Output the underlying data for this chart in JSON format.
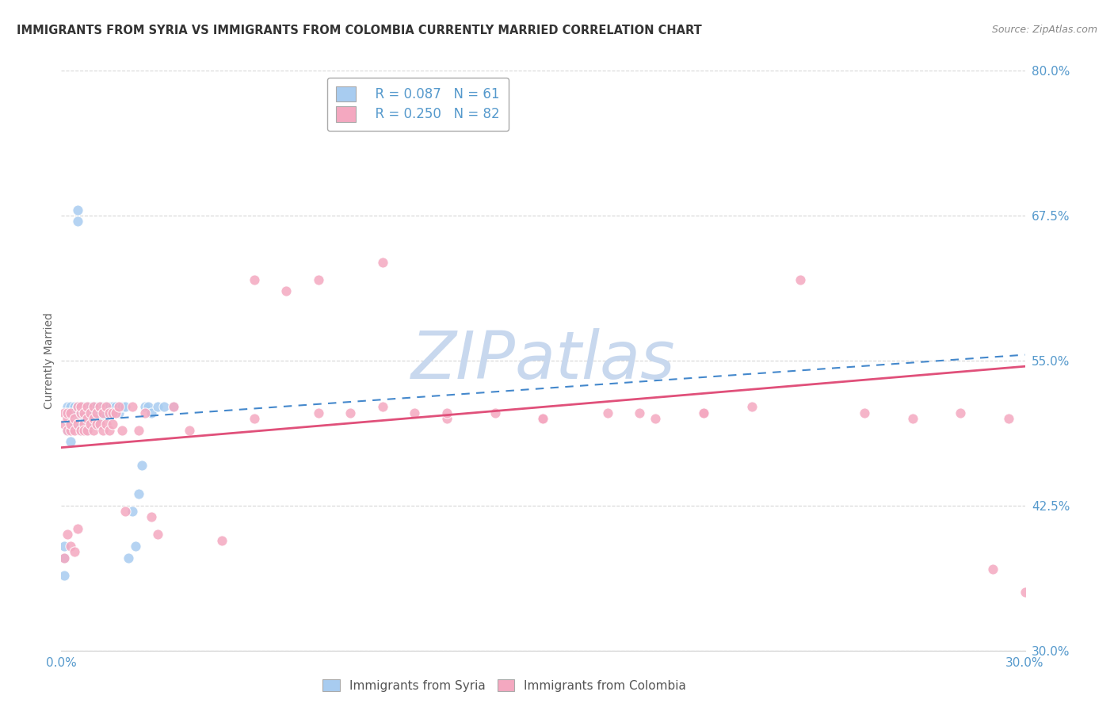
{
  "title": "IMMIGRANTS FROM SYRIA VS IMMIGRANTS FROM COLOMBIA CURRENTLY MARRIED CORRELATION CHART",
  "source": "Source: ZipAtlas.com",
  "xlabel": "",
  "ylabel": "Currently Married",
  "xlim": [
    0.0,
    0.3
  ],
  "ylim": [
    0.3,
    0.8
  ],
  "yticks": [
    0.3,
    0.425,
    0.55,
    0.675,
    0.8
  ],
  "ytick_labels": [
    "30.0%",
    "42.5%",
    "55.0%",
    "67.5%",
    "80.0%"
  ],
  "xticks": [
    0.0,
    0.05,
    0.1,
    0.15,
    0.2,
    0.25,
    0.3
  ],
  "xtick_labels": [
    "0.0%",
    "",
    "",
    "",
    "",
    "",
    "30.0%"
  ],
  "legend_syria_r": "R = 0.087",
  "legend_syria_n": "N = 61",
  "legend_colombia_r": "R = 0.250",
  "legend_colombia_n": "N = 82",
  "syria_color": "#A8CCF0",
  "colombia_color": "#F4A8C0",
  "syria_line_color": "#4488CC",
  "colombia_line_color": "#E0507A",
  "background_color": "#FFFFFF",
  "grid_color": "#CCCCCC",
  "watermark": "ZIPatlas",
  "watermark_color": "#C8D8EE",
  "title_color": "#333333",
  "tick_label_color": "#5599CC",
  "syria_x": [
    0.001,
    0.001,
    0.001,
    0.002,
    0.002,
    0.002,
    0.002,
    0.003,
    0.003,
    0.003,
    0.003,
    0.003,
    0.004,
    0.004,
    0.004,
    0.004,
    0.005,
    0.005,
    0.005,
    0.005,
    0.005,
    0.006,
    0.006,
    0.006,
    0.006,
    0.007,
    0.007,
    0.007,
    0.008,
    0.008,
    0.008,
    0.009,
    0.009,
    0.01,
    0.01,
    0.01,
    0.011,
    0.011,
    0.012,
    0.012,
    0.013,
    0.013,
    0.014,
    0.015,
    0.015,
    0.016,
    0.017,
    0.018,
    0.019,
    0.02,
    0.021,
    0.022,
    0.023,
    0.024,
    0.025,
    0.026,
    0.027,
    0.028,
    0.03,
    0.032,
    0.035
  ],
  "syria_y": [
    0.38,
    0.39,
    0.365,
    0.49,
    0.5,
    0.51,
    0.505,
    0.495,
    0.5,
    0.505,
    0.51,
    0.48,
    0.5,
    0.505,
    0.51,
    0.495,
    0.68,
    0.67,
    0.51,
    0.505,
    0.495,
    0.5,
    0.51,
    0.505,
    0.49,
    0.505,
    0.51,
    0.5,
    0.51,
    0.505,
    0.49,
    0.51,
    0.505,
    0.505,
    0.51,
    0.495,
    0.51,
    0.505,
    0.51,
    0.5,
    0.51,
    0.505,
    0.51,
    0.51,
    0.505,
    0.51,
    0.51,
    0.505,
    0.51,
    0.51,
    0.38,
    0.42,
    0.39,
    0.435,
    0.46,
    0.51,
    0.51,
    0.505,
    0.51,
    0.51,
    0.51
  ],
  "colombia_x": [
    0.001,
    0.001,
    0.001,
    0.002,
    0.002,
    0.002,
    0.002,
    0.003,
    0.003,
    0.003,
    0.003,
    0.004,
    0.004,
    0.004,
    0.005,
    0.005,
    0.005,
    0.006,
    0.006,
    0.006,
    0.007,
    0.007,
    0.007,
    0.008,
    0.008,
    0.008,
    0.009,
    0.009,
    0.01,
    0.01,
    0.01,
    0.011,
    0.011,
    0.012,
    0.012,
    0.013,
    0.013,
    0.014,
    0.014,
    0.015,
    0.015,
    0.016,
    0.016,
    0.017,
    0.018,
    0.019,
    0.02,
    0.022,
    0.024,
    0.026,
    0.028,
    0.03,
    0.035,
    0.04,
    0.05,
    0.06,
    0.07,
    0.08,
    0.09,
    0.1,
    0.11,
    0.12,
    0.135,
    0.15,
    0.17,
    0.185,
    0.2,
    0.215,
    0.23,
    0.25,
    0.265,
    0.28,
    0.295,
    0.3,
    0.06,
    0.08,
    0.1,
    0.12,
    0.15,
    0.18,
    0.2,
    0.29
  ],
  "colombia_y": [
    0.495,
    0.505,
    0.38,
    0.5,
    0.505,
    0.49,
    0.4,
    0.49,
    0.505,
    0.495,
    0.39,
    0.5,
    0.49,
    0.385,
    0.51,
    0.495,
    0.405,
    0.505,
    0.49,
    0.51,
    0.495,
    0.505,
    0.49,
    0.5,
    0.51,
    0.49,
    0.505,
    0.495,
    0.51,
    0.5,
    0.49,
    0.505,
    0.495,
    0.51,
    0.495,
    0.505,
    0.49,
    0.51,
    0.495,
    0.505,
    0.49,
    0.505,
    0.495,
    0.505,
    0.51,
    0.49,
    0.42,
    0.51,
    0.49,
    0.505,
    0.415,
    0.4,
    0.51,
    0.49,
    0.395,
    0.5,
    0.61,
    0.62,
    0.505,
    0.51,
    0.505,
    0.5,
    0.505,
    0.5,
    0.505,
    0.5,
    0.505,
    0.51,
    0.62,
    0.505,
    0.5,
    0.505,
    0.5,
    0.35,
    0.62,
    0.505,
    0.635,
    0.505,
    0.5,
    0.505,
    0.505,
    0.37
  ]
}
